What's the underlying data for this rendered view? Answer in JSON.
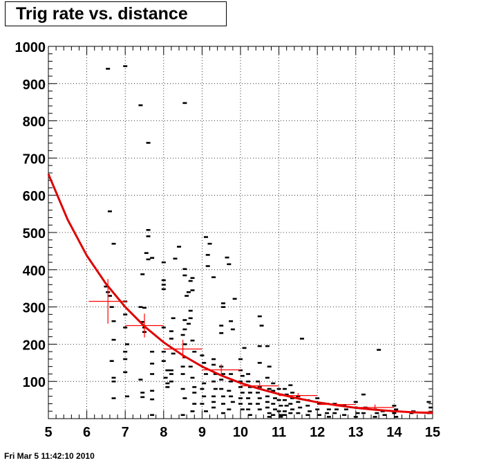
{
  "chart_data": {
    "type": "scatter",
    "title": "Trig rate vs. distance",
    "xlim": [
      5,
      15
    ],
    "ylim": [
      0,
      1000
    ],
    "x_ticks": [
      "5",
      "6",
      "7",
      "8",
      "9",
      "10",
      "11",
      "12",
      "13",
      "14",
      "15"
    ],
    "y_ticks": [
      "100",
      "200",
      "300",
      "400",
      "500",
      "600",
      "700",
      "800",
      "900",
      "1000"
    ],
    "grid": true,
    "series": [
      {
        "kind": "scatter",
        "marker": "dash",
        "color": "#000000",
        "points": [
          [
            6.55,
            940
          ],
          [
            7.0,
            947
          ],
          [
            7.4,
            842
          ],
          [
            8.55,
            848
          ],
          [
            7.6,
            741
          ],
          [
            6.6,
            557
          ],
          [
            6.7,
            470
          ],
          [
            7.6,
            507
          ],
          [
            7.6,
            490
          ],
          [
            7.55,
            445
          ],
          [
            7.6,
            428
          ],
          [
            7.7,
            432
          ],
          [
            7.45,
            388
          ],
          [
            8.0,
            420
          ],
          [
            8.0,
            372
          ],
          [
            8.0,
            360
          ],
          [
            8.0,
            348
          ],
          [
            8.3,
            430
          ],
          [
            8.4,
            462
          ],
          [
            8.55,
            402
          ],
          [
            8.55,
            385
          ],
          [
            8.75,
            378
          ],
          [
            8.7,
            370
          ],
          [
            8.65,
            340
          ],
          [
            8.75,
            345
          ],
          [
            8.6,
            330
          ],
          [
            8.7,
            290
          ],
          [
            8.7,
            270
          ],
          [
            8.65,
            255
          ],
          [
            9.1,
            488
          ],
          [
            9.2,
            470
          ],
          [
            9.15,
            440
          ],
          [
            9.15,
            410
          ],
          [
            9.3,
            380
          ],
          [
            9.65,
            433
          ],
          [
            9.7,
            415
          ],
          [
            9.55,
            310
          ],
          [
            9.55,
            300
          ],
          [
            9.85,
            322
          ],
          [
            9.5,
            250
          ],
          [
            9.5,
            230
          ],
          [
            9.75,
            262
          ],
          [
            9.8,
            240
          ],
          [
            6.5,
            355
          ],
          [
            6.55,
            340
          ],
          [
            6.6,
            330
          ],
          [
            6.65,
            300
          ],
          [
            6.7,
            262
          ],
          [
            6.7,
            212
          ],
          [
            6.65,
            155
          ],
          [
            6.7,
            110
          ],
          [
            6.7,
            100
          ],
          [
            6.7,
            55
          ],
          [
            7.0,
            315
          ],
          [
            7.0,
            280
          ],
          [
            7.0,
            245
          ],
          [
            7.05,
            200
          ],
          [
            7.0,
            180
          ],
          [
            7.0,
            160
          ],
          [
            7.0,
            125
          ],
          [
            7.05,
            60
          ],
          [
            7.4,
            300
          ],
          [
            7.5,
            298
          ],
          [
            7.45,
            260
          ],
          [
            7.5,
            245
          ],
          [
            7.5,
            233
          ],
          [
            7.4,
            105
          ],
          [
            7.45,
            70
          ],
          [
            7.45,
            58
          ],
          [
            7.7,
            180
          ],
          [
            7.7,
            148
          ],
          [
            7.7,
            120
          ],
          [
            7.7,
            75
          ],
          [
            7.7,
            52
          ],
          [
            7.7,
            10
          ],
          [
            8.0,
            245
          ],
          [
            8.0,
            180
          ],
          [
            8.0,
            155
          ],
          [
            8.1,
            130
          ],
          [
            8.05,
            110
          ],
          [
            8.1,
            95
          ],
          [
            8.1,
            85
          ],
          [
            8.25,
            270
          ],
          [
            8.2,
            235
          ],
          [
            8.2,
            215
          ],
          [
            8.25,
            175
          ],
          [
            8.2,
            130
          ],
          [
            8.2,
            120
          ],
          [
            8.2,
            100
          ],
          [
            8.55,
            265
          ],
          [
            8.55,
            240
          ],
          [
            8.5,
            225
          ],
          [
            8.55,
            200
          ],
          [
            8.55,
            165
          ],
          [
            8.5,
            140
          ],
          [
            8.5,
            120
          ],
          [
            8.5,
            80
          ],
          [
            8.55,
            55
          ],
          [
            8.5,
            10
          ],
          [
            8.75,
            210
          ],
          [
            8.8,
            180
          ],
          [
            8.7,
            140
          ],
          [
            8.75,
            110
          ],
          [
            8.8,
            85
          ],
          [
            8.8,
            70
          ],
          [
            8.8,
            40
          ],
          [
            8.75,
            20
          ],
          [
            9.0,
            170
          ],
          [
            9.05,
            150
          ],
          [
            9.1,
            120
          ],
          [
            9.05,
            95
          ],
          [
            9.0,
            80
          ],
          [
            9.05,
            60
          ],
          [
            9.0,
            40
          ],
          [
            9.1,
            20
          ],
          [
            9.3,
            160
          ],
          [
            9.3,
            145
          ],
          [
            9.35,
            120
          ],
          [
            9.3,
            100
          ],
          [
            9.35,
            80
          ],
          [
            9.3,
            60
          ],
          [
            9.3,
            45
          ],
          [
            9.3,
            30
          ],
          [
            9.5,
            140
          ],
          [
            9.55,
            120
          ],
          [
            9.5,
            105
          ],
          [
            9.5,
            80
          ],
          [
            9.55,
            60
          ],
          [
            9.55,
            40
          ],
          [
            9.55,
            15
          ],
          [
            9.75,
            120
          ],
          [
            9.75,
            100
          ],
          [
            9.7,
            75
          ],
          [
            9.75,
            60
          ],
          [
            9.8,
            45
          ],
          [
            9.7,
            25
          ],
          [
            10.0,
            160
          ],
          [
            10.0,
            130
          ],
          [
            10.05,
            115
          ],
          [
            10.0,
            100
          ],
          [
            10.0,
            85
          ],
          [
            10.05,
            70
          ],
          [
            10.0,
            55
          ],
          [
            10.0,
            40
          ],
          [
            10.05,
            25
          ],
          [
            10.1,
            190
          ],
          [
            10.2,
            120
          ],
          [
            10.2,
            100
          ],
          [
            10.25,
            85
          ],
          [
            10.25,
            70
          ],
          [
            10.2,
            55
          ],
          [
            10.25,
            40
          ],
          [
            10.2,
            25
          ],
          [
            10.25,
            10
          ],
          [
            10.45,
            100
          ],
          [
            10.5,
            85
          ],
          [
            10.45,
            70
          ],
          [
            10.5,
            55
          ],
          [
            10.45,
            40
          ],
          [
            10.5,
            25
          ],
          [
            10.5,
            275
          ],
          [
            10.55,
            250
          ],
          [
            10.5,
            195
          ],
          [
            10.5,
            150
          ],
          [
            10.7,
            195
          ],
          [
            10.75,
            140
          ],
          [
            10.7,
            110
          ],
          [
            10.75,
            80
          ],
          [
            10.7,
            60
          ],
          [
            10.7,
            45
          ],
          [
            10.7,
            30
          ],
          [
            10.75,
            15
          ],
          [
            10.75,
            5
          ],
          [
            10.85,
            95
          ],
          [
            10.85,
            75
          ],
          [
            10.9,
            55
          ],
          [
            10.85,
            40
          ],
          [
            10.9,
            25
          ],
          [
            10.85,
            10
          ],
          [
            11.0,
            80
          ],
          [
            11.05,
            65
          ],
          [
            11.0,
            50
          ],
          [
            11.05,
            35
          ],
          [
            11.0,
            20
          ],
          [
            11.05,
            10
          ],
          [
            11.05,
            5
          ],
          [
            11.15,
            80
          ],
          [
            11.2,
            65
          ],
          [
            11.15,
            50
          ],
          [
            11.2,
            35
          ],
          [
            11.15,
            20
          ],
          [
            11.15,
            10
          ],
          [
            11.3,
            90
          ],
          [
            11.35,
            70
          ],
          [
            11.35,
            55
          ],
          [
            11.3,
            40
          ],
          [
            11.35,
            25
          ],
          [
            11.3,
            15
          ],
          [
            11.5,
            60
          ],
          [
            11.5,
            45
          ],
          [
            11.55,
            30
          ],
          [
            11.5,
            15
          ],
          [
            11.6,
            215
          ],
          [
            11.75,
            50
          ],
          [
            11.75,
            35
          ],
          [
            11.8,
            20
          ],
          [
            11.75,
            10
          ],
          [
            12.0,
            55
          ],
          [
            12.05,
            40
          ],
          [
            12.0,
            25
          ],
          [
            12.05,
            10
          ],
          [
            12.25,
            40
          ],
          [
            12.3,
            25
          ],
          [
            12.25,
            15
          ],
          [
            12.3,
            5
          ],
          [
            12.45,
            40
          ],
          [
            12.5,
            25
          ],
          [
            12.45,
            15
          ],
          [
            12.7,
            35
          ],
          [
            12.75,
            25
          ],
          [
            12.7,
            10
          ],
          [
            13.0,
            45
          ],
          [
            13.0,
            30
          ],
          [
            13.05,
            15
          ],
          [
            13.0,
            5
          ],
          [
            13.2,
            65
          ],
          [
            13.25,
            30
          ],
          [
            13.2,
            15
          ],
          [
            13.5,
            25
          ],
          [
            13.55,
            15
          ],
          [
            13.5,
            5
          ],
          [
            13.6,
            185
          ],
          [
            13.7,
            20
          ],
          [
            13.75,
            10
          ],
          [
            14.0,
            35
          ],
          [
            14.05,
            25
          ],
          [
            14.0,
            15
          ],
          [
            14.05,
            5
          ],
          [
            14.45,
            15
          ],
          [
            14.5,
            20
          ],
          [
            14.9,
            45
          ],
          [
            14.95,
            30
          ],
          [
            14.9,
            15
          ]
        ]
      },
      {
        "kind": "profile",
        "color": "#ff0000",
        "points": [
          {
            "x": 6.55,
            "y": 315,
            "xerr": 0.5,
            "yerr": 60
          },
          {
            "x": 7.5,
            "y": 250,
            "xerr": 0.5,
            "yerr": 32
          },
          {
            "x": 8.5,
            "y": 187,
            "xerr": 0.5,
            "yerr": 25
          },
          {
            "x": 9.5,
            "y": 131,
            "xerr": 0.5,
            "yerr": 15
          },
          {
            "x": 10.5,
            "y": 88,
            "xerr": 0.5,
            "yerr": 10
          },
          {
            "x": 11.5,
            "y": 62,
            "xerr": 0.5,
            "yerr": 7
          },
          {
            "x": 12.5,
            "y": 38,
            "xerr": 0.5,
            "yerr": 5
          },
          {
            "x": 13.5,
            "y": 30,
            "xerr": 0.5,
            "yerr": 8
          },
          {
            "x": 14.5,
            "y": 18,
            "xerr": 0.5,
            "yerr": 4
          }
        ]
      },
      {
        "kind": "fit",
        "color": "#dd0000",
        "points": [
          [
            5.0,
            657
          ],
          [
            5.5,
            535
          ],
          [
            6.0,
            438
          ],
          [
            6.5,
            362
          ],
          [
            7.0,
            300
          ],
          [
            7.5,
            248
          ],
          [
            8.0,
            205
          ],
          [
            8.5,
            170
          ],
          [
            9.0,
            140
          ],
          [
            9.5,
            116
          ],
          [
            10.0,
            96
          ],
          [
            10.5,
            80
          ],
          [
            11.0,
            66
          ],
          [
            11.5,
            54
          ],
          [
            12.0,
            44
          ],
          [
            12.5,
            36
          ],
          [
            13.0,
            29
          ],
          [
            13.5,
            24
          ],
          [
            14.0,
            20
          ],
          [
            14.5,
            17
          ],
          [
            15.0,
            15
          ]
        ]
      }
    ]
  },
  "footer": {
    "timestamp": "Fri Mar  5 11:42:10 2010"
  }
}
